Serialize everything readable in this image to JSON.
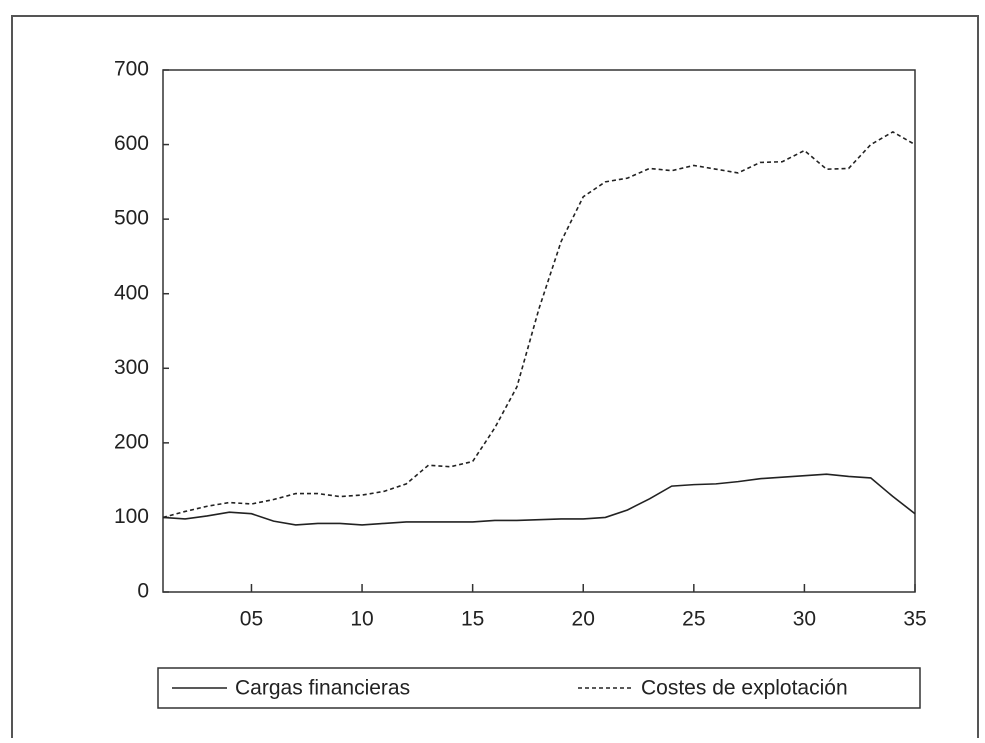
{
  "chart_data": {
    "type": "line",
    "x": [
      1,
      2,
      3,
      4,
      5,
      6,
      7,
      8,
      9,
      10,
      11,
      12,
      13,
      14,
      15,
      16,
      17,
      18,
      19,
      20,
      21,
      22,
      23,
      24,
      25,
      26,
      27,
      28,
      29,
      30,
      31,
      32,
      33,
      34,
      35
    ],
    "series": [
      {
        "name": "Cargas financieras",
        "color": "#222222",
        "dash": "solid",
        "values": [
          100,
          98,
          102,
          107,
          105,
          95,
          90,
          92,
          92,
          90,
          92,
          94,
          94,
          94,
          94,
          96,
          96,
          97,
          98,
          98,
          100,
          110,
          125,
          142,
          144,
          145,
          148,
          152,
          154,
          156,
          158,
          155,
          153,
          128,
          105
        ]
      },
      {
        "name": "Costes de explotación",
        "color": "#222222",
        "dash": "dashed",
        "values": [
          100,
          108,
          115,
          120,
          118,
          124,
          132,
          132,
          128,
          130,
          135,
          145,
          170,
          168,
          175,
          220,
          275,
          380,
          470,
          530,
          550,
          555,
          568,
          565,
          572,
          567,
          562,
          576,
          577,
          592,
          567,
          568,
          600,
          617,
          600
        ]
      }
    ],
    "xlim": [
      1,
      35
    ],
    "xticks": [
      {
        "value": 5,
        "label": "05"
      },
      10,
      15,
      20,
      25,
      30,
      35
    ],
    "ylim": [
      0,
      700
    ],
    "yticks": [
      0,
      100,
      200,
      300,
      400,
      500,
      600,
      700
    ],
    "grid": false,
    "legend": "bottom"
  }
}
